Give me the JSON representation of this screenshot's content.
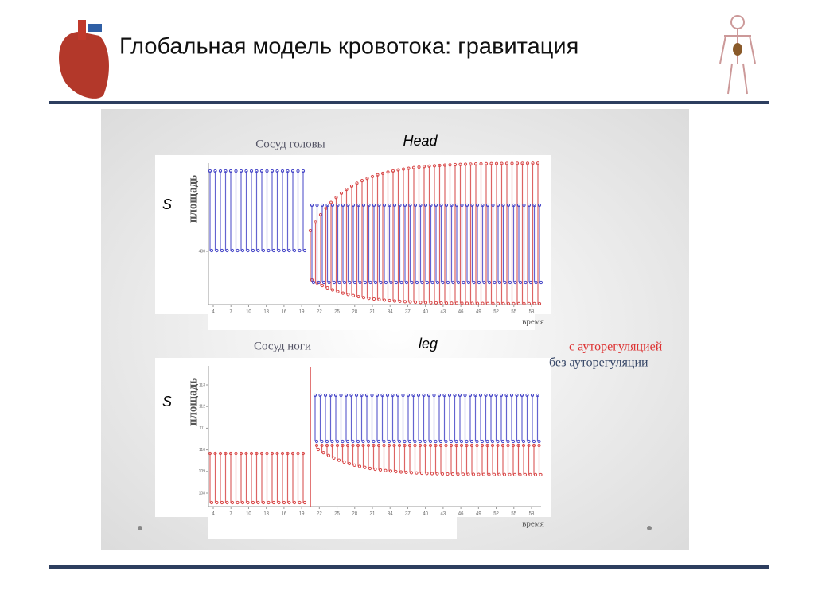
{
  "header": {
    "title": "Глобальная модель кровотока: гравитация"
  },
  "charts": [
    {
      "title": "Сосуд головы",
      "label": "Head",
      "y_label": "площадь",
      "s": "S",
      "x_label": "время",
      "xticks": [
        4,
        7,
        10,
        13,
        16,
        19,
        22,
        25,
        28,
        31,
        34,
        37,
        40,
        43,
        46,
        49,
        52,
        55,
        58
      ],
      "yticks": [
        400
      ]
    },
    {
      "title": "Сосуд ноги",
      "label": "leg",
      "y_label": "площадь",
      "s": "S",
      "x_label": "время",
      "xticks": [
        4,
        7,
        10,
        13,
        16,
        19,
        22,
        25,
        28,
        31,
        34,
        37,
        40,
        43,
        46,
        49,
        52,
        55,
        58
      ],
      "yticks": [
        108,
        109,
        110,
        111,
        112,
        113
      ]
    }
  ],
  "legend": [
    {
      "name": "с ауторегуляцией",
      "color": "#d33"
    },
    {
      "name": "без ауторегуляции",
      "color": "#335"
    }
  ]
}
